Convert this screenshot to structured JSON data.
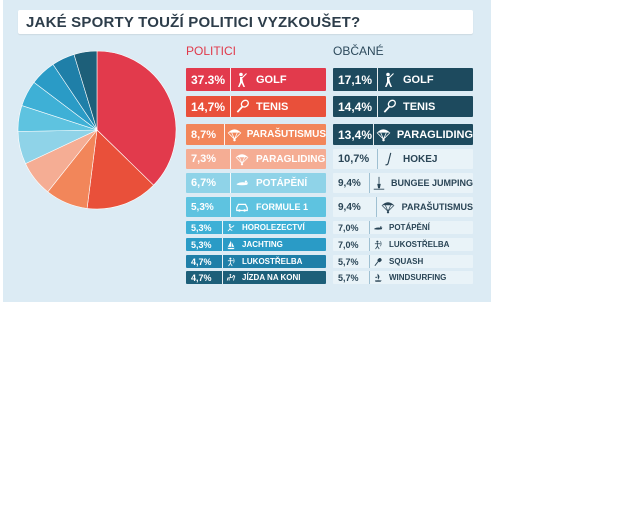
{
  "title": "JAKÉ SPORTY TOUŽÍ POLITICI VYZKOUŠET?",
  "headers": {
    "politici": "POLITICI",
    "obcane": "OBČANÉ"
  },
  "chart_data": {
    "type": "pie",
    "title": "JAKÉ SPORTY TOUŽÍ POLITICI VYZKOUŠET?",
    "series_name": "POLITICI",
    "categories": [
      "GOLF",
      "TENIS",
      "PARAŠUTISMUS",
      "PARAGLIDING",
      "POTÁPĚNÍ",
      "FORMULE 1",
      "HOROLEZECTVÍ",
      "JACHTING",
      "LUKOSTŘELBA",
      "JÍZDA NA KONI"
    ],
    "values": [
      37.3,
      14.7,
      8.7,
      7.3,
      6.7,
      5.3,
      5.3,
      5.3,
      4.7,
      4.7
    ],
    "slice_colors": [
      "#e23a4c",
      "#e9503a",
      "#f2865a",
      "#f5ad94",
      "#8fd3e8",
      "#5ec3e0",
      "#3eb0d6",
      "#2a9bc6",
      "#1f7fa8",
      "#1d5f79"
    ]
  },
  "politici": [
    {
      "pct": "37.3%",
      "label": "GOLF",
      "icon": "golfer-icon",
      "bg": "#e23a4c",
      "light": false
    },
    {
      "pct": "14,7%",
      "label": "TENIS",
      "icon": "tennis-racket-icon",
      "bg": "#e9503a",
      "light": false
    },
    {
      "pct": "8,7%",
      "label": "PARAŠUTISMUS",
      "icon": "parachute-icon",
      "bg": "#f2865a",
      "light": false
    },
    {
      "pct": "7,3%",
      "label": "PARAGLIDING",
      "icon": "parachute-icon",
      "bg": "#f5ad94",
      "light": false
    },
    {
      "pct": "6,7%",
      "label": "POTÁPĚNÍ",
      "icon": "diver-icon",
      "bg": "#8fd3e8",
      "light": false
    },
    {
      "pct": "5,3%",
      "label": "FORMULE 1",
      "icon": "car-icon",
      "bg": "#5ec3e0",
      "light": false
    },
    {
      "pct": "5,3%",
      "label": "HOROLEZECTVÍ",
      "icon": "climber-icon",
      "bg": "#3eb0d6",
      "light": false
    },
    {
      "pct": "5,3%",
      "label": "JACHTING",
      "icon": "sailing-icon",
      "bg": "#2a9bc6",
      "light": false
    },
    {
      "pct": "4,7%",
      "label": "LUKOSTŘELBA",
      "icon": "archer-icon",
      "bg": "#1f7fa8",
      "light": false
    },
    {
      "pct": "4,7%",
      "label": "JÍZDA NA KONI",
      "icon": "horse-rider-icon",
      "bg": "#1d5f79",
      "light": false
    }
  ],
  "obcane": [
    {
      "pct": "17,1%",
      "label": "GOLF",
      "icon": "golfer-icon",
      "bg": "#1d4a5e",
      "light": false
    },
    {
      "pct": "14,4%",
      "label": "TENIS",
      "icon": "tennis-racket-icon",
      "bg": "#1d4a5e",
      "light": false
    },
    {
      "pct": "13,4%",
      "label": "PARAGLIDING",
      "icon": "parachute-icon",
      "bg": "#1d4a5e",
      "light": false
    },
    {
      "pct": "10,7%",
      "label": "HOKEJ",
      "icon": "hockey-stick-icon",
      "bg": "#e9f3f8",
      "light": true
    },
    {
      "pct": "9,4%",
      "label": "BUNGEE JUMPING",
      "icon": "bungee-icon",
      "bg": "#e9f3f8",
      "light": true
    },
    {
      "pct": "9,4%",
      "label": "PARAŠUTISMUS",
      "icon": "parachute-icon",
      "bg": "#e9f3f8",
      "light": true
    },
    {
      "pct": "7,0%",
      "label": "POTÁPĚNÍ",
      "icon": "diver-icon",
      "bg": "#e9f3f8",
      "light": true
    },
    {
      "pct": "7,0%",
      "label": "LUKOSTŘELBA",
      "icon": "archer-icon",
      "bg": "#e9f3f8",
      "light": true
    },
    {
      "pct": "5,7%",
      "label": "SQUASH",
      "icon": "squash-racket-icon",
      "bg": "#e9f3f8",
      "light": true
    },
    {
      "pct": "5,7%",
      "label": "WINDSURFING",
      "icon": "windsurf-icon",
      "bg": "#e9f3f8",
      "light": true
    }
  ]
}
